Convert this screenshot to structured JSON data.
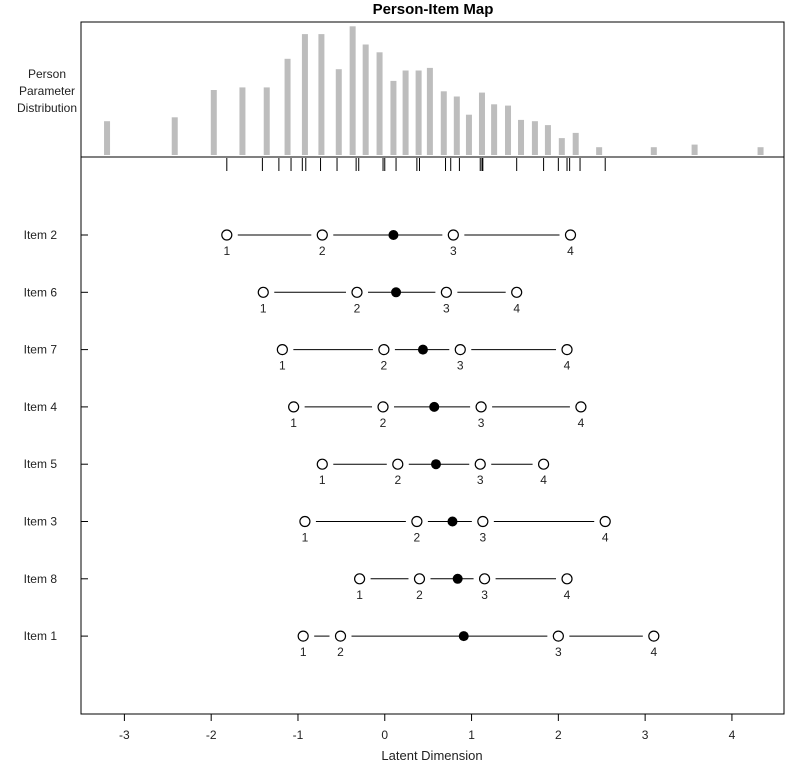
{
  "chart_data": {
    "type": "person-item-map",
    "title": "Person-Item Map",
    "xlabel": "Latent Dimension",
    "xlim": [
      -3.5,
      4.6
    ],
    "xticks": [
      -3,
      -2,
      -1,
      0,
      1,
      2,
      3,
      4
    ],
    "distribution_label": [
      "Person",
      "Parameter",
      "Distribution"
    ],
    "colors": {
      "bars": "#bdbdbd",
      "axis": "#000000",
      "filled": "#000000",
      "open": "#ffffff"
    },
    "distribution": [
      {
        "x": -3.2,
        "h": 0.26
      },
      {
        "x": -2.42,
        "h": 0.29
      },
      {
        "x": -1.97,
        "h": 0.5
      },
      {
        "x": -1.64,
        "h": 0.52
      },
      {
        "x": -1.36,
        "h": 0.52
      },
      {
        "x": -1.12,
        "h": 0.74
      },
      {
        "x": -0.92,
        "h": 0.93
      },
      {
        "x": -0.73,
        "h": 0.93
      },
      {
        "x": -0.53,
        "h": 0.66
      },
      {
        "x": -0.37,
        "h": 0.99
      },
      {
        "x": -0.22,
        "h": 0.85
      },
      {
        "x": -0.06,
        "h": 0.79
      },
      {
        "x": 0.1,
        "h": 0.57
      },
      {
        "x": 0.24,
        "h": 0.65
      },
      {
        "x": 0.39,
        "h": 0.65
      },
      {
        "x": 0.52,
        "h": 0.67
      },
      {
        "x": 0.68,
        "h": 0.49
      },
      {
        "x": 0.83,
        "h": 0.45
      },
      {
        "x": 0.97,
        "h": 0.31
      },
      {
        "x": 1.12,
        "h": 0.48
      },
      {
        "x": 1.26,
        "h": 0.39
      },
      {
        "x": 1.42,
        "h": 0.38
      },
      {
        "x": 1.57,
        "h": 0.27
      },
      {
        "x": 1.73,
        "h": 0.26
      },
      {
        "x": 1.88,
        "h": 0.23
      },
      {
        "x": 2.04,
        "h": 0.13
      },
      {
        "x": 2.2,
        "h": 0.17
      },
      {
        "x": 2.47,
        "h": 0.06
      },
      {
        "x": 3.1,
        "h": 0.06
      },
      {
        "x": 3.57,
        "h": 0.08
      },
      {
        "x": 4.33,
        "h": 0.06
      }
    ],
    "rug": [
      -1.82,
      -1.41,
      -1.22,
      -1.08,
      -0.95,
      -0.91,
      -0.74,
      -0.55,
      -0.33,
      -0.3,
      -0.02,
      0.0,
      0.13,
      0.37,
      0.4,
      0.7,
      0.76,
      0.86,
      1.1,
      1.12,
      1.13,
      1.52,
      1.83,
      2.0,
      2.1,
      2.13,
      2.25,
      2.54
    ],
    "items": [
      {
        "name": "Item 2",
        "thresholds": [
          -1.82,
          -0.72,
          0.79,
          2.14
        ],
        "location": 0.1
      },
      {
        "name": "Item 6",
        "thresholds": [
          -1.4,
          -0.32,
          0.71,
          1.52
        ],
        "location": 0.13
      },
      {
        "name": "Item 7",
        "thresholds": [
          -1.18,
          -0.01,
          0.87,
          2.1
        ],
        "location": 0.44
      },
      {
        "name": "Item 4",
        "thresholds": [
          -1.05,
          -0.02,
          1.11,
          2.26
        ],
        "location": 0.57
      },
      {
        "name": "Item 5",
        "thresholds": [
          -0.72,
          0.15,
          1.1,
          1.83
        ],
        "location": 0.59
      },
      {
        "name": "Item 3",
        "thresholds": [
          -0.92,
          0.37,
          1.13,
          2.54
        ],
        "location": 0.78
      },
      {
        "name": "Item 8",
        "thresholds": [
          -0.29,
          0.4,
          1.15,
          2.1
        ],
        "location": 0.84
      },
      {
        "name": "Item 1",
        "thresholds": [
          -0.94,
          -0.51,
          2.0,
          3.1
        ],
        "location": 0.91
      }
    ],
    "threshold_labels": [
      "1",
      "2",
      "3",
      "4"
    ]
  }
}
